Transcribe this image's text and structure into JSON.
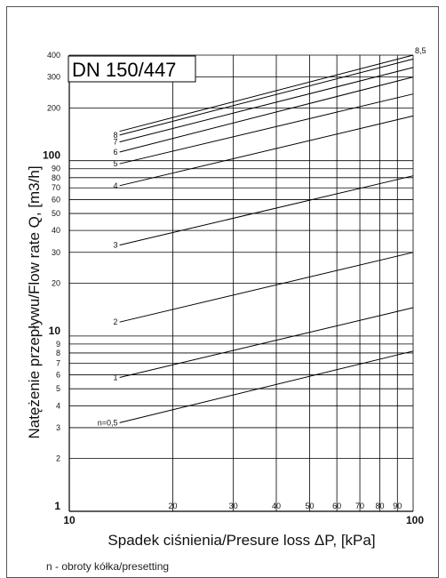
{
  "chart_data": {
    "type": "line",
    "title": "DN 150/447",
    "xlabel": "Spadek ciśnienia/Presure loss ΔP, [kPa]",
    "ylabel": "Natężenie przepływu/Flow rate Q, [m3/h]",
    "x_scale": "log",
    "y_scale": "log",
    "xlim": [
      10,
      100
    ],
    "ylim": [
      1,
      400
    ],
    "grid": true,
    "x_ticks": [
      {
        "value": 10,
        "label": "10",
        "major": true
      },
      {
        "value": 20,
        "label": "20",
        "major": false
      },
      {
        "value": 30,
        "label": "30",
        "major": false
      },
      {
        "value": 40,
        "label": "40",
        "major": false
      },
      {
        "value": 50,
        "label": "50",
        "major": false
      },
      {
        "value": 60,
        "label": "60",
        "major": false
      },
      {
        "value": 70,
        "label": "70",
        "major": false
      },
      {
        "value": 80,
        "label": "80",
        "major": false
      },
      {
        "value": 90,
        "label": "90",
        "major": false
      },
      {
        "value": 100,
        "label": "100",
        "major": true
      }
    ],
    "y_ticks": [
      {
        "value": 1,
        "label": "1",
        "major": true
      },
      {
        "value": 2,
        "label": "2",
        "major": false
      },
      {
        "value": 3,
        "label": "3",
        "major": false
      },
      {
        "value": 4,
        "label": "4",
        "major": false
      },
      {
        "value": 5,
        "label": "5",
        "major": false
      },
      {
        "value": 6,
        "label": "6",
        "major": false
      },
      {
        "value": 7,
        "label": "7",
        "major": false
      },
      {
        "value": 8,
        "label": "8",
        "major": false
      },
      {
        "value": 9,
        "label": "9",
        "major": false
      },
      {
        "value": 10,
        "label": "10",
        "major": true
      },
      {
        "value": 20,
        "label": "20",
        "major": false
      },
      {
        "value": 30,
        "label": "30",
        "major": false
      },
      {
        "value": 40,
        "label": "40",
        "major": false
      },
      {
        "value": 50,
        "label": "50",
        "major": false
      },
      {
        "value": 60,
        "label": "60",
        "major": false
      },
      {
        "value": 70,
        "label": "70",
        "major": false
      },
      {
        "value": 80,
        "label": "80",
        "major": false
      },
      {
        "value": 90,
        "label": "90",
        "major": false
      },
      {
        "value": 100,
        "label": "100",
        "major": true
      },
      {
        "value": 200,
        "label": "200",
        "major": false
      },
      {
        "value": 300,
        "label": "300",
        "major": false
      },
      {
        "value": 400,
        "label": "400",
        "major": false
      }
    ],
    "series": [
      {
        "label": "n=0,5",
        "x": [
          14,
          100
        ],
        "y": [
          3.2,
          8.2
        ]
      },
      {
        "label": "1",
        "x": [
          14,
          100
        ],
        "y": [
          5.8,
          14.5
        ]
      },
      {
        "label": "2",
        "x": [
          14,
          100
        ],
        "y": [
          12,
          30
        ]
      },
      {
        "label": "3",
        "x": [
          14,
          100
        ],
        "y": [
          33,
          82
        ]
      },
      {
        "label": "4",
        "x": [
          14,
          100
        ],
        "y": [
          72,
          180
        ]
      },
      {
        "label": "5",
        "x": [
          14,
          100
        ],
        "y": [
          96,
          240
        ]
      },
      {
        "label": "6",
        "x": [
          14,
          100
        ],
        "y": [
          112,
          300
        ]
      },
      {
        "label": "7",
        "x": [
          14,
          100
        ],
        "y": [
          128,
          340
        ]
      },
      {
        "label": "8",
        "x": [
          14,
          100
        ],
        "y": [
          140,
          380
        ]
      },
      {
        "label": "8,5",
        "x": [
          14,
          100
        ],
        "y": [
          147,
          400
        ]
      }
    ],
    "footnote": "n - obroty kółka/presetting"
  }
}
